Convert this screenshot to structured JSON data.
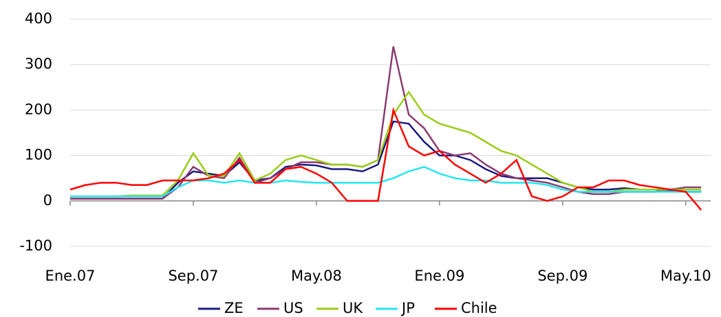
{
  "chart_data": {
    "type": "line",
    "categories": [
      "Ene.07",
      null,
      null,
      null,
      null,
      null,
      null,
      null,
      "Sep.07",
      null,
      null,
      null,
      null,
      null,
      null,
      null,
      "May.08",
      null,
      null,
      null,
      null,
      null,
      null,
      null,
      "Ene.09",
      null,
      null,
      null,
      null,
      null,
      null,
      null,
      "Sep.09",
      null,
      null,
      null,
      null,
      null,
      null,
      null,
      "May.10",
      null
    ],
    "series": [
      {
        "name": "ZE",
        "color": "#1a1a80",
        "values": [
          5,
          5,
          5,
          5,
          5,
          5,
          5,
          40,
          65,
          60,
          55,
          85,
          45,
          50,
          75,
          80,
          78,
          70,
          70,
          65,
          80,
          175,
          170,
          130,
          100,
          100,
          90,
          70,
          55,
          50,
          50,
          50,
          40,
          30,
          25,
          25,
          28,
          25,
          25,
          22,
          20,
          20
        ]
      },
      {
        "name": "US",
        "color": "#8b3a70",
        "values": [
          5,
          5,
          5,
          5,
          5,
          5,
          5,
          30,
          75,
          55,
          50,
          95,
          40,
          50,
          70,
          85,
          85,
          80,
          80,
          75,
          90,
          340,
          190,
          160,
          110,
          100,
          105,
          80,
          60,
          50,
          45,
          40,
          30,
          20,
          15,
          15,
          20,
          20,
          20,
          25,
          30,
          30
        ]
      },
      {
        "name": "UK",
        "color": "#9acd17",
        "values": [
          10,
          10,
          10,
          10,
          12,
          12,
          12,
          45,
          105,
          55,
          55,
          105,
          45,
          60,
          90,
          100,
          90,
          80,
          80,
          75,
          90,
          190,
          240,
          190,
          170,
          160,
          150,
          130,
          110,
          100,
          80,
          60,
          40,
          30,
          20,
          20,
          25,
          25,
          25,
          25,
          25,
          25
        ]
      },
      {
        "name": "JP",
        "color": "#22e6f0",
        "values": [
          10,
          10,
          10,
          10,
          10,
          10,
          10,
          30,
          45,
          45,
          40,
          45,
          40,
          40,
          45,
          42,
          40,
          40,
          40,
          40,
          40,
          50,
          65,
          75,
          60,
          50,
          45,
          45,
          40,
          40,
          40,
          35,
          25,
          20,
          20,
          20,
          20,
          20,
          20,
          20,
          20,
          20
        ]
      },
      {
        "name": "Chile",
        "color": "#ff0000",
        "values": [
          25,
          35,
          40,
          40,
          35,
          35,
          45,
          45,
          45,
          50,
          60,
          90,
          40,
          40,
          70,
          75,
          60,
          40,
          0,
          0,
          0,
          200,
          120,
          100,
          110,
          80,
          60,
          40,
          60,
          90,
          10,
          0,
          10,
          30,
          30,
          45,
          45,
          35,
          30,
          25,
          20,
          -20
        ]
      }
    ],
    "ylim": [
      -100,
      400
    ],
    "yticks": [
      -100,
      0,
      100,
      200,
      300,
      400
    ],
    "grid": true,
    "legend": "bottom"
  }
}
